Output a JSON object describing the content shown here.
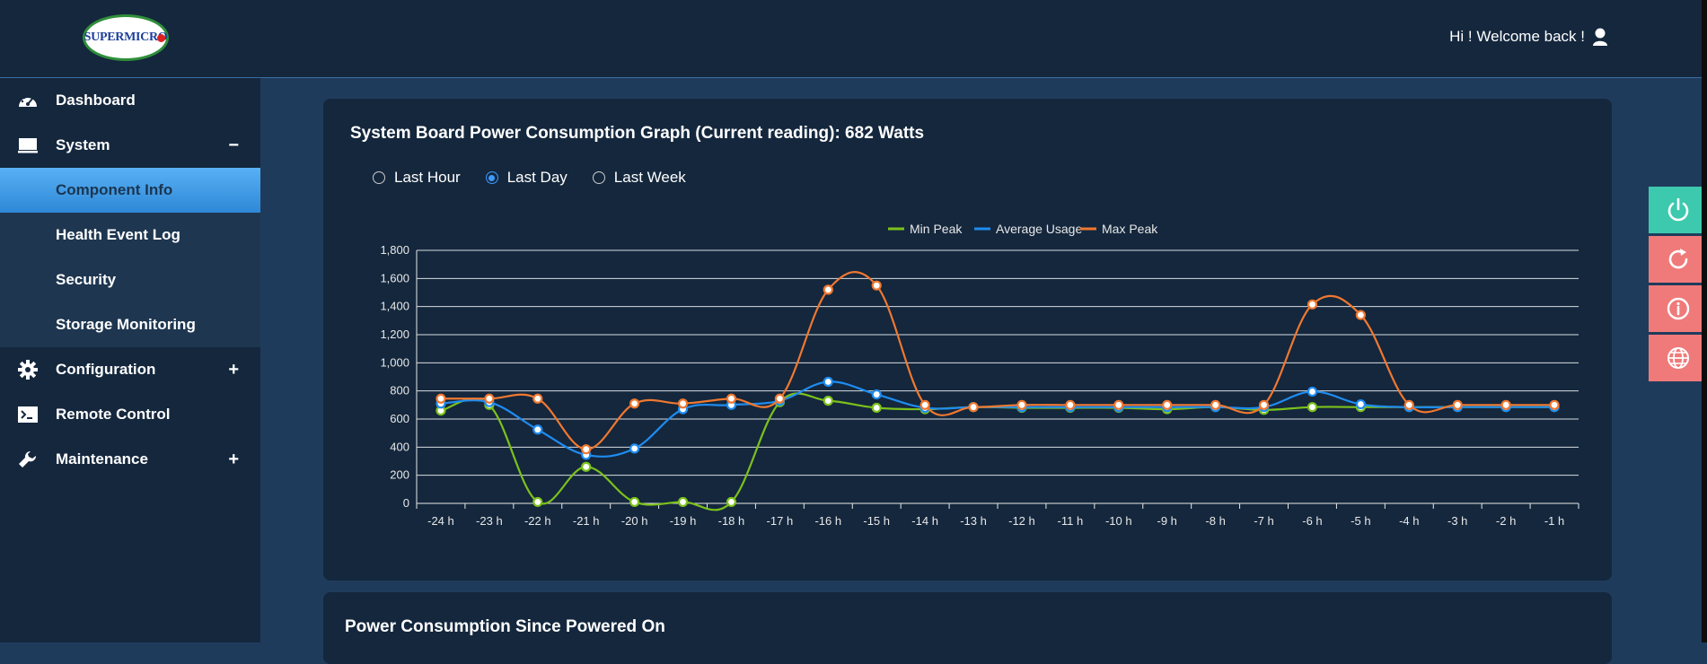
{
  "header": {
    "logo_text": "SUPERMICRO",
    "welcome": "Hi ! Welcome back !"
  },
  "sidebar": {
    "items": [
      {
        "label": "Dashboard",
        "icon": "dashboard-gauge-icon"
      },
      {
        "label": "System",
        "icon": "monitor-icon",
        "toggle": "−"
      },
      {
        "label": "Configuration",
        "icon": "gear-icon",
        "toggle": "+"
      },
      {
        "label": "Remote Control",
        "icon": "terminal-icon"
      },
      {
        "label": "Maintenance",
        "icon": "wrench-icon",
        "toggle": "+"
      }
    ],
    "system_subitems": [
      "Component Info",
      "Health Event Log",
      "Security",
      "Storage Monitoring"
    ],
    "active_subitem": "Component Info"
  },
  "graph_card": {
    "title": "System Board Power Consumption Graph (Current reading): 682 Watts",
    "ranges": [
      "Last Hour",
      "Last Day",
      "Last Week"
    ],
    "selected_range": "Last Day"
  },
  "chart_data": {
    "type": "line",
    "x": [
      "-24 h",
      "-23 h",
      "-22 h",
      "-21 h",
      "-20 h",
      "-19 h",
      "-18 h",
      "-17 h",
      "-16 h",
      "-15 h",
      "-14 h",
      "-13 h",
      "-12 h",
      "-11 h",
      "-10 h",
      "-9 h",
      "-8 h",
      "-7 h",
      "-6 h",
      "-5 h",
      "-4 h",
      "-3 h",
      "-2 h",
      "-1 h"
    ],
    "ylim": [
      0,
      1800
    ],
    "yticks": [
      0,
      200,
      400,
      600,
      800,
      1000,
      1200,
      1400,
      1600,
      1800
    ],
    "ytick_labels": [
      "0",
      "200",
      "400",
      "600",
      "800",
      "1,000",
      "1,200",
      "1,400",
      "1,600",
      "1,800"
    ],
    "legend_position": "top-center",
    "grid": true,
    "series": [
      {
        "name": "Min Peak",
        "color": "#7cc11c",
        "values": [
          660,
          700,
          10,
          260,
          10,
          10,
          10,
          720,
          730,
          680,
          670,
          685,
          680,
          680,
          680,
          670,
          685,
          665,
          685,
          685,
          685,
          685,
          685,
          685
        ]
      },
      {
        "name": "Average Usage",
        "color": "#1f8cf0",
        "values": [
          710,
          720,
          525,
          345,
          390,
          670,
          700,
          730,
          865,
          775,
          680,
          685,
          685,
          685,
          685,
          685,
          685,
          685,
          795,
          705,
          685,
          685,
          685,
          685
        ]
      },
      {
        "name": "Max Peak",
        "color": "#f07830",
        "values": [
          745,
          745,
          745,
          385,
          710,
          710,
          745,
          745,
          1520,
          1550,
          700,
          685,
          700,
          700,
          700,
          700,
          700,
          700,
          1415,
          1340,
          700,
          700,
          700,
          700
        ]
      }
    ]
  },
  "power_card": {
    "title": "Power Consumption Since Powered On"
  },
  "right_buttons": [
    {
      "icon": "power-icon",
      "color": "#3cc9ae"
    },
    {
      "icon": "refresh-icon",
      "color": "#f07a7a"
    },
    {
      "icon": "info-icon",
      "color": "#f07a7a"
    },
    {
      "icon": "globe-icon",
      "color": "#f07a7a"
    }
  ]
}
